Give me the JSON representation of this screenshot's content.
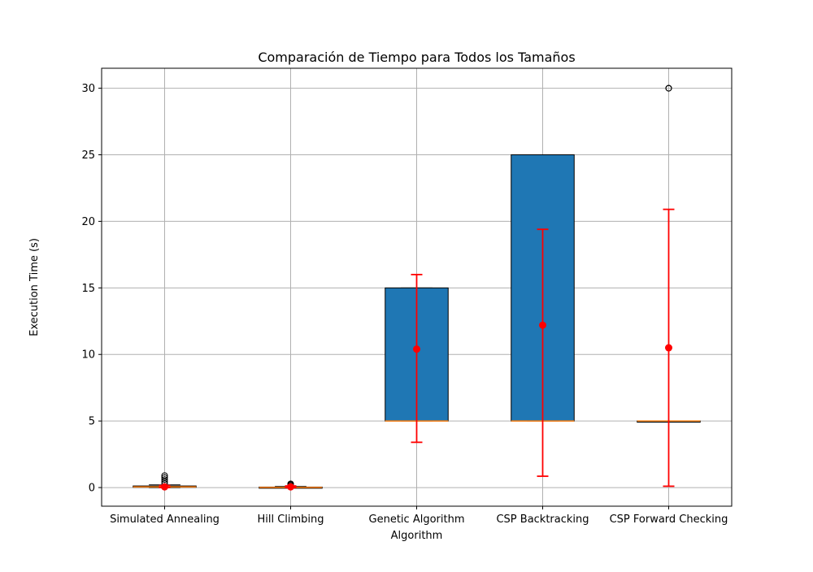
{
  "chart_data": {
    "type": "box",
    "title": "Comparación de Tiempo para Todos los Tamaños",
    "xlabel": "Algorithm",
    "ylabel": "Execution Time (s)",
    "ylim": [
      -1.4,
      31.5
    ],
    "yticks": [
      0,
      5,
      10,
      15,
      20,
      25,
      30
    ],
    "grid": true,
    "categories": [
      "Simulated Annealing",
      "Hill Climbing",
      "Genetic Algorithm",
      "CSP Backtracking",
      "CSP Forward Checking"
    ],
    "boxes": [
      {
        "q1": 0.02,
        "median": 0.05,
        "q3": 0.12,
        "whisker_low": 0.0,
        "whisker_high": 0.2,
        "outliers": [
          0.3,
          0.45,
          0.6,
          0.75,
          0.9
        ],
        "mean": 0.05,
        "std_low": 0.0,
        "std_high": 0.15
      },
      {
        "q1": 0.0,
        "median": 0.01,
        "q3": 0.04,
        "whisker_low": 0.0,
        "whisker_high": 0.08,
        "outliers": [
          0.15,
          0.22,
          0.28
        ],
        "mean": 0.05,
        "std_low": 0.0,
        "std_high": 0.12
      },
      {
        "q1": 5,
        "median": 5,
        "q3": 15,
        "whisker_low": 5,
        "whisker_high": 15,
        "outliers": [],
        "mean": 10.4,
        "std_low": 3.4,
        "std_high": 16.0
      },
      {
        "q1": 5,
        "median": 5,
        "q3": 25,
        "whisker_low": 5,
        "whisker_high": 25,
        "outliers": [],
        "mean": 12.2,
        "std_low": 0.85,
        "std_high": 19.4
      },
      {
        "q1": 5,
        "median": 5,
        "q3": 5,
        "whisker_low": 5,
        "whisker_high": 5,
        "outliers": [
          30,
          30,
          30
        ],
        "mean": 10.5,
        "std_low": 0.1,
        "std_high": 20.9
      }
    ],
    "colors": {
      "box_fill": "#1f77b4",
      "median": "#ff7f0e",
      "mean": "#ff0000",
      "errorbar": "#ff0000",
      "grid": "#b0b0b0"
    }
  }
}
